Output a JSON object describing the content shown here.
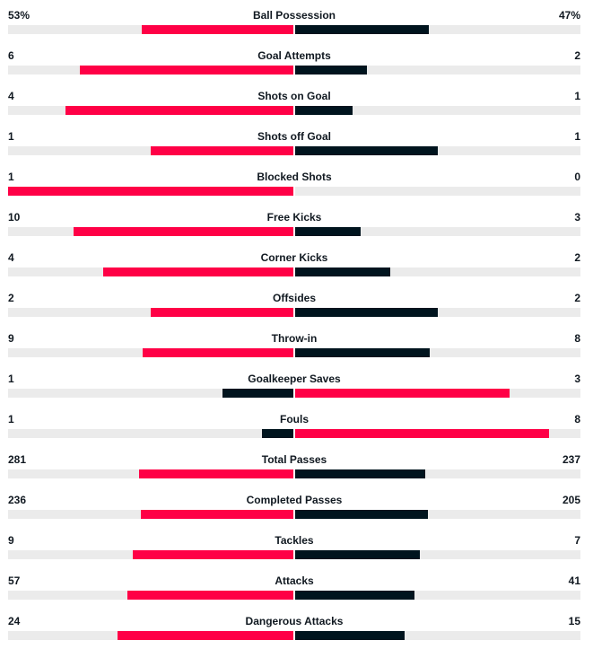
{
  "stats": [
    {
      "name": "Ball Possession",
      "home": "53%",
      "away": "47%",
      "home_value": 53,
      "away_value": 47
    },
    {
      "name": "Goal Attempts",
      "home": "6",
      "away": "2",
      "home_value": 6,
      "away_value": 2
    },
    {
      "name": "Shots on Goal",
      "home": "4",
      "away": "1",
      "home_value": 4,
      "away_value": 1
    },
    {
      "name": "Shots off Goal",
      "home": "1",
      "away": "1",
      "home_value": 1,
      "away_value": 1
    },
    {
      "name": "Blocked Shots",
      "home": "1",
      "away": "0",
      "home_value": 1,
      "away_value": 0
    },
    {
      "name": "Free Kicks",
      "home": "10",
      "away": "3",
      "home_value": 10,
      "away_value": 3
    },
    {
      "name": "Corner Kicks",
      "home": "4",
      "away": "2",
      "home_value": 4,
      "away_value": 2
    },
    {
      "name": "Offsides",
      "home": "2",
      "away": "2",
      "home_value": 2,
      "away_value": 2
    },
    {
      "name": "Throw-in",
      "home": "9",
      "away": "8",
      "home_value": 9,
      "away_value": 8
    },
    {
      "name": "Goalkeeper Saves",
      "home": "1",
      "away": "3",
      "home_value": 1,
      "away_value": 3
    },
    {
      "name": "Fouls",
      "home": "1",
      "away": "8",
      "home_value": 1,
      "away_value": 8
    },
    {
      "name": "Total Passes",
      "home": "281",
      "away": "237",
      "home_value": 281,
      "away_value": 237
    },
    {
      "name": "Completed Passes",
      "home": "236",
      "away": "205",
      "home_value": 236,
      "away_value": 205
    },
    {
      "name": "Tackles",
      "home": "9",
      "away": "7",
      "home_value": 9,
      "away_value": 7
    },
    {
      "name": "Attacks",
      "home": "57",
      "away": "41",
      "home_value": 57,
      "away_value": 41
    },
    {
      "name": "Dangerous Attacks",
      "home": "24",
      "away": "15",
      "home_value": 24,
      "away_value": 15
    }
  ],
  "colors": {
    "leader": "#ff0046",
    "trailer": "#00141e",
    "track": "#ebebeb"
  }
}
